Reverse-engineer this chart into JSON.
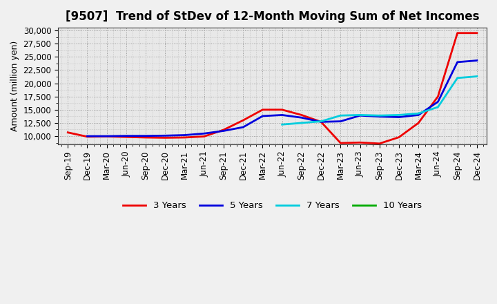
{
  "title": "[9507]  Trend of StDev of 12-Month Moving Sum of Net Incomes",
  "ylabel": "Amount (million yen)",
  "background_color": "#f0f0f0",
  "plot_background_color": "#e8e8e8",
  "grid_color": "#aaaaaa",
  "ylim_min": 8500,
  "ylim_max": 30500,
  "yticks": [
    10000,
    12500,
    15000,
    17500,
    20000,
    22500,
    25000,
    27500,
    30000
  ],
  "x_labels": [
    "Sep-19",
    "Dec-19",
    "Mar-20",
    "Jun-20",
    "Sep-20",
    "Dec-20",
    "Mar-21",
    "Jun-21",
    "Sep-21",
    "Dec-21",
    "Mar-22",
    "Jun-22",
    "Sep-22",
    "Dec-22",
    "Mar-23",
    "Jun-23",
    "Sep-23",
    "Dec-23",
    "Mar-24",
    "Jun-24",
    "Sep-24",
    "Dec-24"
  ],
  "series": [
    {
      "label": "3 Years",
      "color": "#ee0000",
      "linewidth": 2.0,
      "x": [
        0,
        1,
        2,
        3,
        4,
        5,
        6,
        7,
        8,
        9,
        10,
        11,
        12,
        13,
        14,
        15,
        16,
        17,
        18,
        19,
        20,
        21
      ],
      "y": [
        10700,
        9900,
        9950,
        9850,
        9750,
        9700,
        9750,
        9950,
        11200,
        13000,
        15000,
        15000,
        14000,
        12700,
        8700,
        8800,
        8600,
        9800,
        12500,
        17500,
        29500,
        29500
      ]
    },
    {
      "label": "5 Years",
      "color": "#0000dd",
      "linewidth": 2.0,
      "x": [
        1,
        2,
        3,
        4,
        5,
        6,
        7,
        8,
        9,
        10,
        11,
        12,
        13,
        14,
        15,
        16,
        17,
        18,
        19,
        20,
        21
      ],
      "y": [
        10000,
        10000,
        10050,
        10050,
        10100,
        10200,
        10500,
        11000,
        11700,
        13800,
        14000,
        13500,
        12700,
        12800,
        13900,
        13700,
        13600,
        14000,
        16500,
        24000,
        24300
      ]
    },
    {
      "label": "7 Years",
      "color": "#00ccdd",
      "linewidth": 2.0,
      "x": [
        11,
        12,
        13,
        14,
        15,
        16,
        17,
        18,
        19,
        20,
        21
      ],
      "y": [
        12200,
        12500,
        12800,
        13900,
        14000,
        13900,
        14000,
        14300,
        15500,
        21000,
        21300
      ]
    },
    {
      "label": "10 Years",
      "color": "#00aa00",
      "linewidth": 2.0,
      "x": [],
      "y": []
    }
  ],
  "legend_loc": "lower center",
  "legend_ncol": 4,
  "title_fontsize": 12,
  "label_fontsize": 9,
  "tick_fontsize": 8.5
}
